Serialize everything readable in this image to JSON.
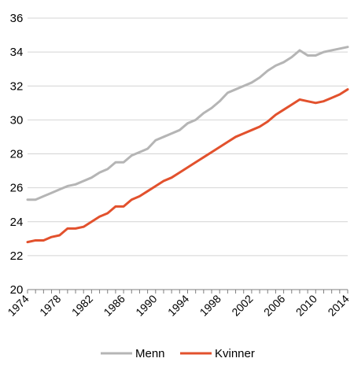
{
  "chart_data": {
    "type": "line",
    "title": "",
    "xlabel": "",
    "ylabel": "",
    "ylim": [
      20,
      36
    ],
    "yticks": [
      "20",
      "22",
      "24",
      "26",
      "28",
      "30",
      "32",
      "34",
      "36"
    ],
    "xtick_labels": [
      "1974",
      "1978",
      "1982",
      "1986",
      "1990",
      "1994",
      "1998",
      "2002",
      "2006",
      "2010",
      "2014"
    ],
    "x": [
      1974,
      1975,
      1976,
      1977,
      1978,
      1979,
      1980,
      1981,
      1982,
      1983,
      1984,
      1985,
      1986,
      1987,
      1988,
      1989,
      1990,
      1991,
      1992,
      1993,
      1994,
      1995,
      1996,
      1997,
      1998,
      1999,
      2000,
      2001,
      2002,
      2003,
      2004,
      2005,
      2006,
      2007,
      2008,
      2009,
      2010,
      2011,
      2012,
      2013,
      2014
    ],
    "grid": true,
    "legend_position": "bottom",
    "series": [
      {
        "name": "Menn",
        "color": "#b5b5b5",
        "values": [
          25.3,
          25.3,
          25.5,
          25.7,
          25.9,
          26.1,
          26.2,
          26.4,
          26.6,
          26.9,
          27.1,
          27.5,
          27.5,
          27.9,
          28.1,
          28.3,
          28.8,
          29.0,
          29.2,
          29.4,
          29.8,
          30.0,
          30.4,
          30.7,
          31.1,
          31.6,
          31.8,
          32.0,
          32.2,
          32.5,
          32.9,
          33.2,
          33.4,
          33.7,
          34.1,
          33.8,
          33.8,
          34.0,
          34.1,
          34.2,
          34.3
        ]
      },
      {
        "name": "Kvinner",
        "color": "#e2512d",
        "values": [
          22.8,
          22.9,
          22.9,
          23.1,
          23.2,
          23.6,
          23.6,
          23.7,
          24.0,
          24.3,
          24.5,
          24.9,
          24.9,
          25.3,
          25.5,
          25.8,
          26.1,
          26.4,
          26.6,
          26.9,
          27.2,
          27.5,
          27.8,
          28.1,
          28.4,
          28.7,
          29.0,
          29.2,
          29.4,
          29.6,
          29.9,
          30.3,
          30.6,
          30.9,
          31.2,
          31.1,
          31.0,
          31.1,
          31.3,
          31.5,
          31.8
        ]
      }
    ]
  }
}
